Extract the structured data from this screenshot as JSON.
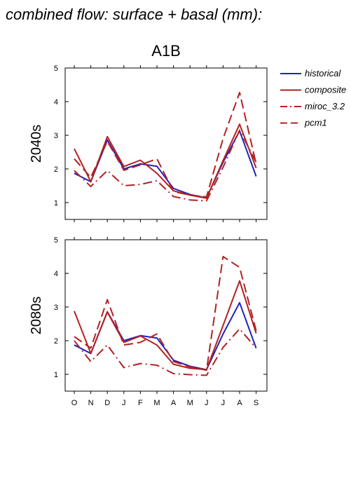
{
  "figure_title": "combined flow: surface + basal (mm):",
  "chart_data": [
    {
      "type": "line",
      "title": "A1B",
      "ylabel": "2040s",
      "xlabel": "",
      "categories": [
        "O",
        "N",
        "D",
        "J",
        "F",
        "M",
        "A",
        "M",
        "J",
        "J",
        "A",
        "S"
      ],
      "ylim": [
        0.5,
        5
      ],
      "yticks": [
        1,
        2,
        3,
        4,
        5
      ],
      "grid": false,
      "legend": "right",
      "series": [
        {
          "name": "historical",
          "color": "#2222bb",
          "style": "solid",
          "values": [
            1.87,
            1.62,
            2.86,
            2.0,
            2.15,
            2.08,
            1.42,
            1.24,
            1.14,
            2.2,
            3.13,
            1.78
          ]
        },
        {
          "name": "composite",
          "color": "#b22222",
          "style": "solid",
          "values": [
            2.6,
            1.62,
            2.96,
            2.07,
            2.26,
            1.87,
            1.35,
            1.22,
            1.13,
            2.25,
            3.33,
            2.03
          ]
        },
        {
          "name": "miroc_3.2",
          "color": "#b22222",
          "style": "dashdot",
          "values": [
            1.95,
            1.48,
            1.95,
            1.5,
            1.54,
            1.65,
            1.18,
            1.08,
            1.05,
            2.05,
            3.15,
            2.2
          ]
        },
        {
          "name": "pcm1",
          "color": "#b22222",
          "style": "dashed",
          "values": [
            2.3,
            1.75,
            2.82,
            1.96,
            2.12,
            2.3,
            1.33,
            1.22,
            1.17,
            2.9,
            4.27,
            2.15
          ]
        }
      ]
    },
    {
      "type": "line",
      "title": "",
      "ylabel": "2080s",
      "xlabel": "",
      "categories": [
        "O",
        "N",
        "D",
        "J",
        "F",
        "M",
        "A",
        "M",
        "J",
        "J",
        "A",
        "S"
      ],
      "ylim": [
        0.5,
        5
      ],
      "yticks": [
        1,
        2,
        3,
        4,
        5
      ],
      "grid": false,
      "series": [
        {
          "name": "historical",
          "color": "#2222bb",
          "style": "solid",
          "values": [
            1.87,
            1.62,
            2.86,
            2.0,
            2.15,
            2.08,
            1.42,
            1.24,
            1.14,
            2.2,
            3.13,
            1.78
          ]
        },
        {
          "name": "composite",
          "color": "#b22222",
          "style": "solid",
          "values": [
            2.88,
            1.62,
            2.85,
            1.95,
            2.14,
            1.87,
            1.3,
            1.18,
            1.14,
            2.45,
            3.78,
            2.22
          ]
        },
        {
          "name": "miroc_3.2",
          "color": "#b22222",
          "style": "dashdot",
          "values": [
            2.0,
            1.38,
            1.87,
            1.2,
            1.32,
            1.27,
            1.02,
            0.99,
            0.97,
            1.8,
            2.35,
            1.78
          ]
        },
        {
          "name": "pcm1",
          "color": "#b22222",
          "style": "dashed",
          "values": [
            2.12,
            1.78,
            3.22,
            1.87,
            1.95,
            2.2,
            1.38,
            1.22,
            1.12,
            4.5,
            4.18,
            2.3
          ]
        }
      ]
    }
  ]
}
